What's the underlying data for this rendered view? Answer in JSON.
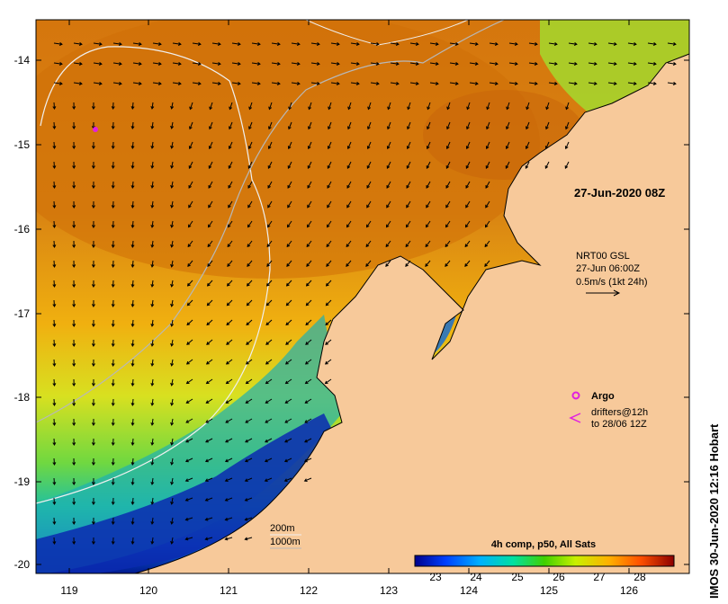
{
  "map": {
    "lon_ticks": [
      "119",
      "120",
      "121",
      "122",
      "123",
      "124",
      "125",
      "126"
    ],
    "lat_ticks": [
      "-14",
      "-15",
      "-16",
      "-17",
      "-18",
      "-19",
      "-20"
    ],
    "timestamp_label": "27-Jun-2020 08Z",
    "current_legend": {
      "line1": "NRT00 GSL",
      "line2": "27-Jun 06:00Z",
      "line3": "0.5m/s (1kt 24h)"
    },
    "argo_label": "Argo",
    "drifters_line1": "drifters@12h",
    "drifters_line2": "to 28/06 12Z",
    "isobath_200": "200m",
    "isobath_1000": "1000m",
    "credit": "IMOS 30-Jun-2020 12:16 Hobart",
    "colors": {
      "land": "#f7c99a",
      "argo": "#e020e0",
      "sea_warm": "#d97a10",
      "sea_cool": "#001aa0"
    }
  },
  "colorbar": {
    "title": "4h comp, p50, All Sats",
    "labels": [
      "23",
      "24",
      "25",
      "26",
      "27",
      "28"
    ]
  }
}
